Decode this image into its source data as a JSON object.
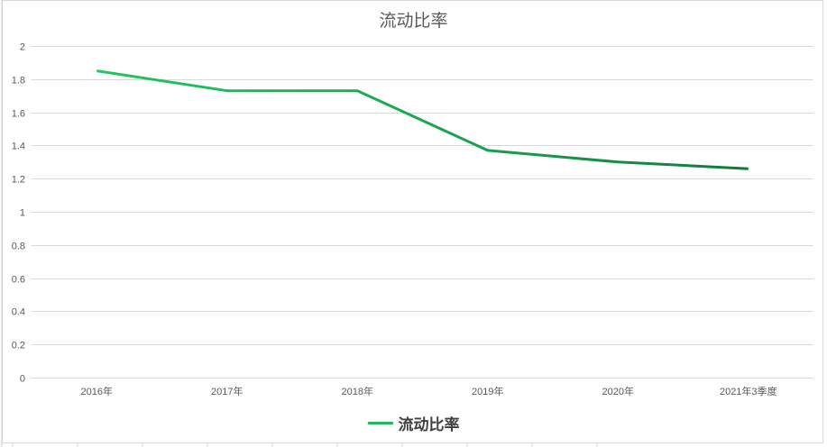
{
  "chart": {
    "title": "流动比率",
    "legend": [
      {
        "label": "流动比率",
        "color": "#1fb85a"
      }
    ]
  },
  "chart_data": {
    "type": "line",
    "title": "流动比率",
    "xlabel": "",
    "ylabel": "",
    "categories": [
      "2016年",
      "2017年",
      "2018年",
      "2019年",
      "2020年",
      "2021年3季度"
    ],
    "series": [
      {
        "name": "流动比率",
        "values": [
          1.85,
          1.73,
          1.73,
          1.37,
          1.3,
          1.26
        ],
        "color": "#1fb85a"
      }
    ],
    "ylim": [
      0,
      2
    ],
    "yticks": [
      0,
      0.2,
      0.4,
      0.6,
      0.8,
      1,
      1.2,
      1.4,
      1.6,
      1.8,
      2
    ],
    "ytick_labels": [
      "0",
      "0.2",
      "0.4",
      "0.6",
      "0.8",
      "1",
      "1.2",
      "1.4",
      "1.6",
      "1.8",
      "2"
    ],
    "grid": true,
    "legend_position": "bottom"
  }
}
